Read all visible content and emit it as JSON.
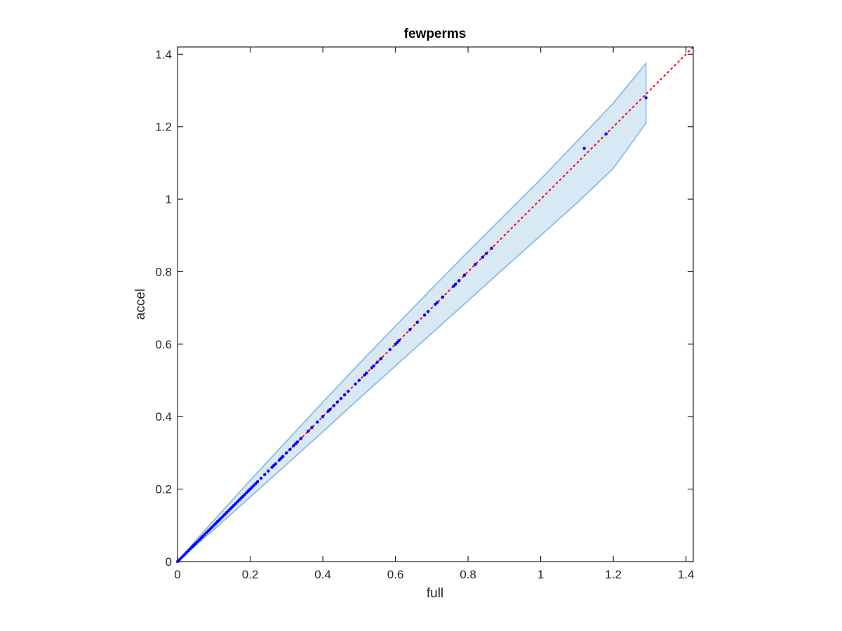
{
  "chart_data": {
    "type": "scatter",
    "title": "fewperms",
    "xlabel": "full",
    "ylabel": "accel",
    "xlim": [
      0,
      1.42
    ],
    "ylim": [
      0,
      1.42
    ],
    "xticks": [
      "0",
      "0.2",
      "0.4",
      "0.6",
      "0.8",
      "1",
      "1.2",
      "1.4"
    ],
    "yticks": [
      "0",
      "0.2",
      "0.4",
      "0.6",
      "0.8",
      "1",
      "1.2",
      "1.4"
    ],
    "xtick_values": [
      0,
      0.2,
      0.4,
      0.6,
      0.8,
      1.0,
      1.2,
      1.4
    ],
    "ytick_values": [
      0,
      0.2,
      0.4,
      0.6,
      0.8,
      1.0,
      1.2,
      1.4
    ],
    "grid": false,
    "colors": {
      "points": "#0000ff",
      "reference_line": "#ff0000",
      "band_fill": "#d8e8f5",
      "band_edge": "#8dbfe0",
      "axes": "#262626"
    },
    "reference_line": {
      "style": "dotted",
      "from": [
        0,
        0
      ],
      "to": [
        1.42,
        1.42
      ]
    },
    "band": {
      "x": [
        0,
        0.05,
        0.1,
        0.2,
        0.3,
        0.4,
        0.5,
        0.6,
        0.7,
        0.8,
        0.9,
        1.0,
        1.1,
        1.2,
        1.29
      ],
      "upper": [
        0,
        0.058,
        0.114,
        0.224,
        0.332,
        0.44,
        0.546,
        0.65,
        0.753,
        0.855,
        0.955,
        1.055,
        1.16,
        1.265,
        1.375
      ],
      "lower": [
        0,
        0.045,
        0.088,
        0.178,
        0.268,
        0.358,
        0.45,
        0.54,
        0.63,
        0.72,
        0.81,
        0.9,
        0.99,
        1.085,
        1.21
      ]
    },
    "series": [
      {
        "points": [
          [
            0.0,
            0.0
          ],
          [
            0.005,
            0.005
          ],
          [
            0.01,
            0.01
          ],
          [
            0.015,
            0.015
          ],
          [
            0.02,
            0.02
          ],
          [
            0.025,
            0.025
          ],
          [
            0.03,
            0.03
          ],
          [
            0.035,
            0.035
          ],
          [
            0.04,
            0.04
          ],
          [
            0.045,
            0.045
          ],
          [
            0.05,
            0.05
          ],
          [
            0.055,
            0.055
          ],
          [
            0.06,
            0.06
          ],
          [
            0.065,
            0.065
          ],
          [
            0.07,
            0.07
          ],
          [
            0.075,
            0.075
          ],
          [
            0.08,
            0.08
          ],
          [
            0.085,
            0.085
          ],
          [
            0.09,
            0.09
          ],
          [
            0.095,
            0.095
          ],
          [
            0.1,
            0.1
          ],
          [
            0.105,
            0.105
          ],
          [
            0.11,
            0.11
          ],
          [
            0.115,
            0.115
          ],
          [
            0.12,
            0.12
          ],
          [
            0.125,
            0.125
          ],
          [
            0.13,
            0.13
          ],
          [
            0.135,
            0.135
          ],
          [
            0.14,
            0.14
          ],
          [
            0.145,
            0.145
          ],
          [
            0.15,
            0.15
          ],
          [
            0.155,
            0.155
          ],
          [
            0.16,
            0.16
          ],
          [
            0.165,
            0.165
          ],
          [
            0.17,
            0.17
          ],
          [
            0.175,
            0.175
          ],
          [
            0.18,
            0.18
          ],
          [
            0.185,
            0.185
          ],
          [
            0.19,
            0.19
          ],
          [
            0.195,
            0.195
          ],
          [
            0.2,
            0.2
          ],
          [
            0.205,
            0.205
          ],
          [
            0.21,
            0.21
          ],
          [
            0.215,
            0.215
          ],
          [
            0.22,
            0.22
          ],
          [
            0.23,
            0.23
          ],
          [
            0.24,
            0.24
          ],
          [
            0.25,
            0.25
          ],
          [
            0.26,
            0.26
          ],
          [
            0.265,
            0.265
          ],
          [
            0.27,
            0.27
          ],
          [
            0.28,
            0.28
          ],
          [
            0.285,
            0.285
          ],
          [
            0.29,
            0.29
          ],
          [
            0.3,
            0.3
          ],
          [
            0.31,
            0.31
          ],
          [
            0.32,
            0.32
          ],
          [
            0.325,
            0.325
          ],
          [
            0.33,
            0.33
          ],
          [
            0.34,
            0.34
          ],
          [
            0.36,
            0.36
          ],
          [
            0.37,
            0.37
          ],
          [
            0.385,
            0.385
          ],
          [
            0.4,
            0.4
          ],
          [
            0.415,
            0.415
          ],
          [
            0.42,
            0.42
          ],
          [
            0.43,
            0.43
          ],
          [
            0.44,
            0.44
          ],
          [
            0.45,
            0.45
          ],
          [
            0.46,
            0.46
          ],
          [
            0.47,
            0.47
          ],
          [
            0.49,
            0.49
          ],
          [
            0.5,
            0.5
          ],
          [
            0.515,
            0.515
          ],
          [
            0.52,
            0.52
          ],
          [
            0.535,
            0.535
          ],
          [
            0.54,
            0.54
          ],
          [
            0.55,
            0.55
          ],
          [
            0.56,
            0.56
          ],
          [
            0.585,
            0.585
          ],
          [
            0.6,
            0.6
          ],
          [
            0.605,
            0.605
          ],
          [
            0.61,
            0.61
          ],
          [
            0.64,
            0.64
          ],
          [
            0.66,
            0.66
          ],
          [
            0.68,
            0.68
          ],
          [
            0.69,
            0.69
          ],
          [
            0.71,
            0.71
          ],
          [
            0.715,
            0.715
          ],
          [
            0.73,
            0.73
          ],
          [
            0.76,
            0.76
          ],
          [
            0.765,
            0.765
          ],
          [
            0.775,
            0.775
          ],
          [
            0.79,
            0.79
          ],
          [
            0.82,
            0.82
          ],
          [
            0.84,
            0.84
          ],
          [
            0.85,
            0.85
          ],
          [
            0.865,
            0.865
          ],
          [
            1.12,
            1.14
          ],
          [
            1.18,
            1.18
          ],
          [
            1.29,
            1.28
          ]
        ]
      }
    ]
  }
}
